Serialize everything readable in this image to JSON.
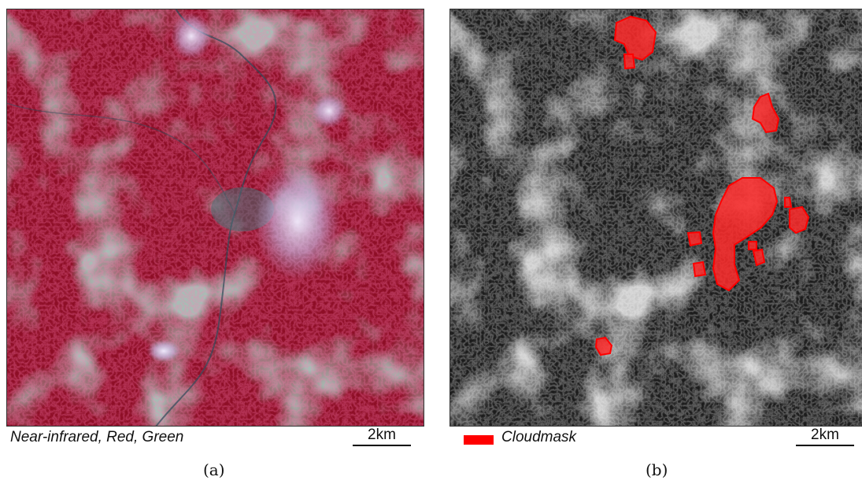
{
  "panels": [
    {
      "id": "a",
      "caption": "Near-infrared, Red, Green",
      "scalebar_label": "2km",
      "sublabel": "(a)"
    },
    {
      "id": "b",
      "legend_label": "Cloudmask",
      "legend_color": "#ff0000",
      "scalebar_label": "2km",
      "sublabel": "(b)"
    }
  ],
  "colors": {
    "vegetation": "#a0102a",
    "bare_soil": "#9fb3ad",
    "cloud_rgb": "#d8d0f0",
    "cloudmask": "#ff0000"
  }
}
